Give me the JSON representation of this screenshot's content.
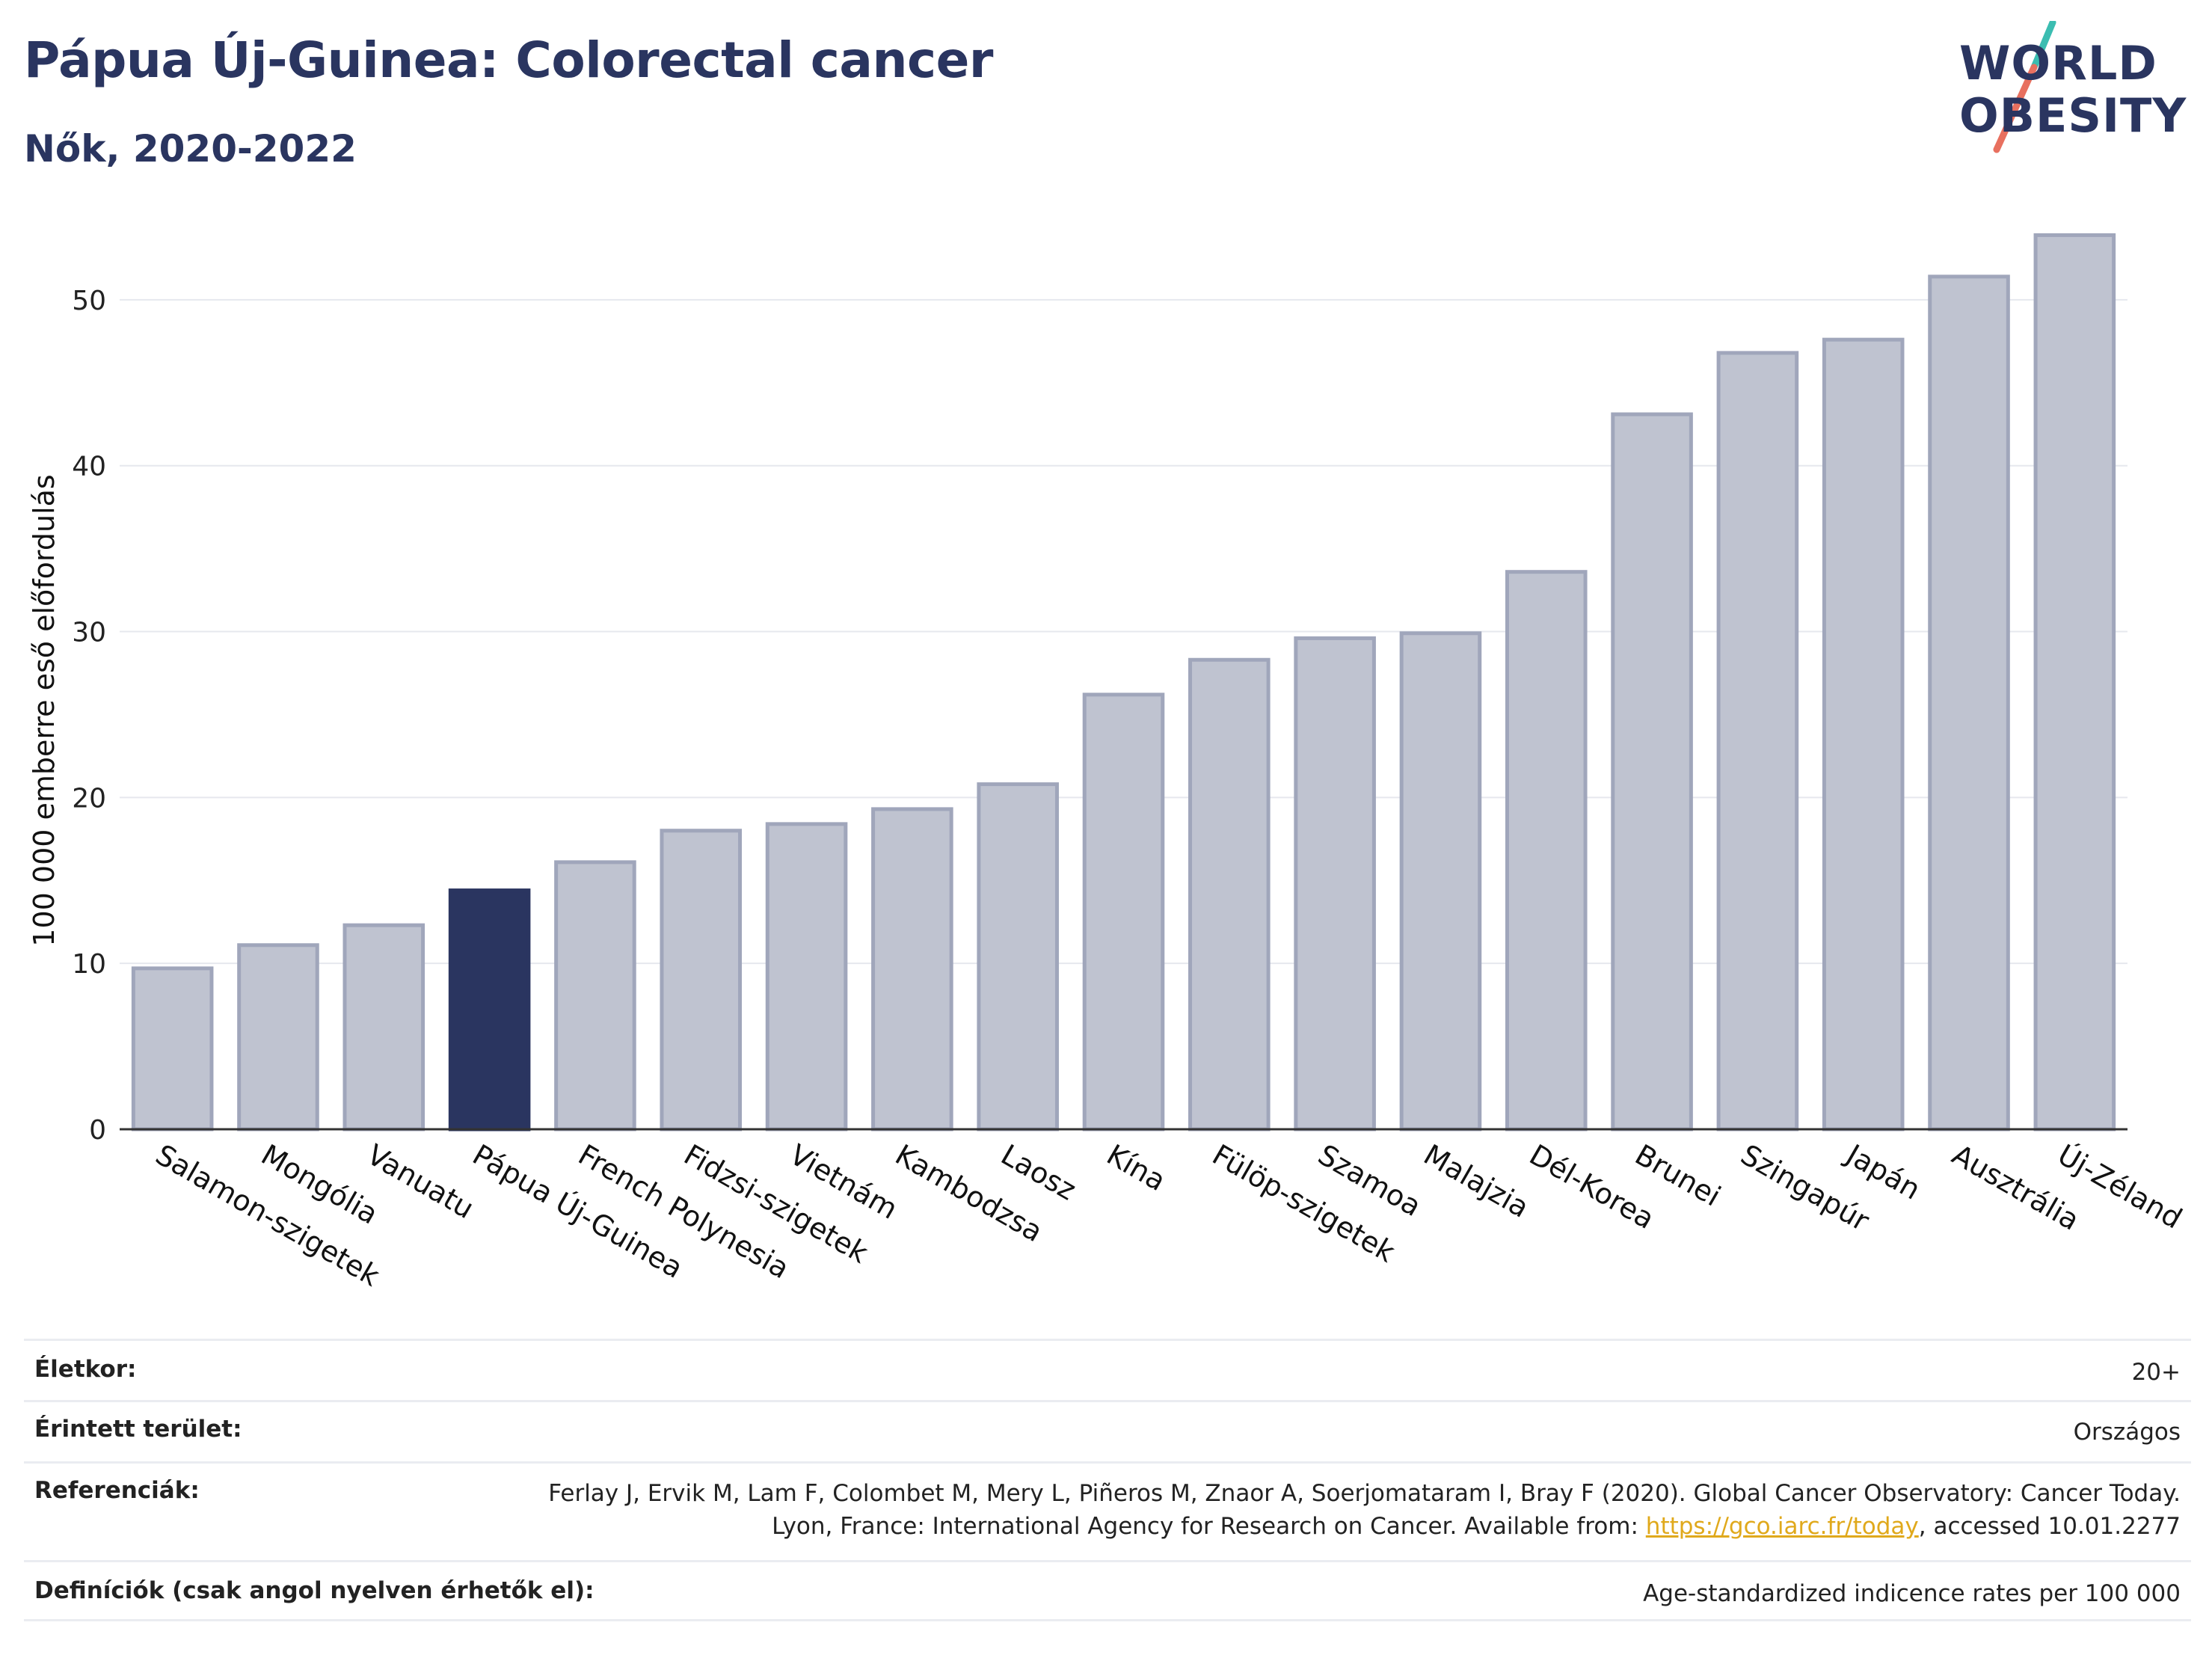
{
  "header": {
    "title": "Pápua Új-Guinea: Colorectal cancer",
    "subtitle": "Nők, 2020-2022"
  },
  "logo": {
    "line1": "WORLD",
    "line2": "OBESITY",
    "colors": {
      "text": "#2a3560",
      "slash_top": "#3bbdb1",
      "slash_bottom": "#e8705f"
    }
  },
  "chart_data": {
    "type": "bar",
    "ylabel": "100 000 emberre eső előfordulás",
    "ylim": [
      0,
      55
    ],
    "yticks": [
      0,
      10,
      20,
      30,
      40,
      50
    ],
    "grid": true,
    "highlight": "Pápua Új-Guinea",
    "colors": {
      "bar": "#bfc3d0",
      "bar_edge": "#a0a6bb",
      "highlight": "#2a3560"
    },
    "categories": [
      "Salamon-szigetek",
      "Mongólia",
      "Vanuatu",
      "Pápua Új-Guinea",
      "French Polynesia",
      "Fidzsi-szigetek",
      "Vietnám",
      "Kambodzsa",
      "Laosz",
      "Kína",
      "Fülöp-szigetek",
      "Szamoa",
      "Malajzia",
      "Dél-Korea",
      "Brunei",
      "Szingapúr",
      "Japán",
      "Ausztrália",
      "Új-Zéland"
    ],
    "values": [
      9.7,
      11.1,
      12.3,
      14.4,
      16.1,
      18.0,
      18.4,
      19.3,
      20.8,
      26.2,
      28.3,
      29.6,
      29.9,
      33.6,
      43.1,
      46.8,
      47.6,
      51.4,
      53.9
    ]
  },
  "info": {
    "age_label": "Életkor:",
    "age_value": "20+",
    "area_label": "Érintett terület:",
    "area_value": "Országos",
    "refs_label": "Referenciák:",
    "refs_text": "Ferlay J, Ervik M, Lam F, Colombet M, Mery L, Piñeros M, Znaor A, Soerjomataram I, Bray F (2020). Global Cancer Observatory: Cancer Today. Lyon, France: International Agency for Research on Cancer. Available from: ",
    "refs_link": "https://gco.iarc.fr/today",
    "refs_tail": ", accessed 10.01.2277",
    "def_label": "Definíciók (csak angol nyelven érhetők el):",
    "def_value": "Age-standardized indicence rates per 100 000"
  }
}
